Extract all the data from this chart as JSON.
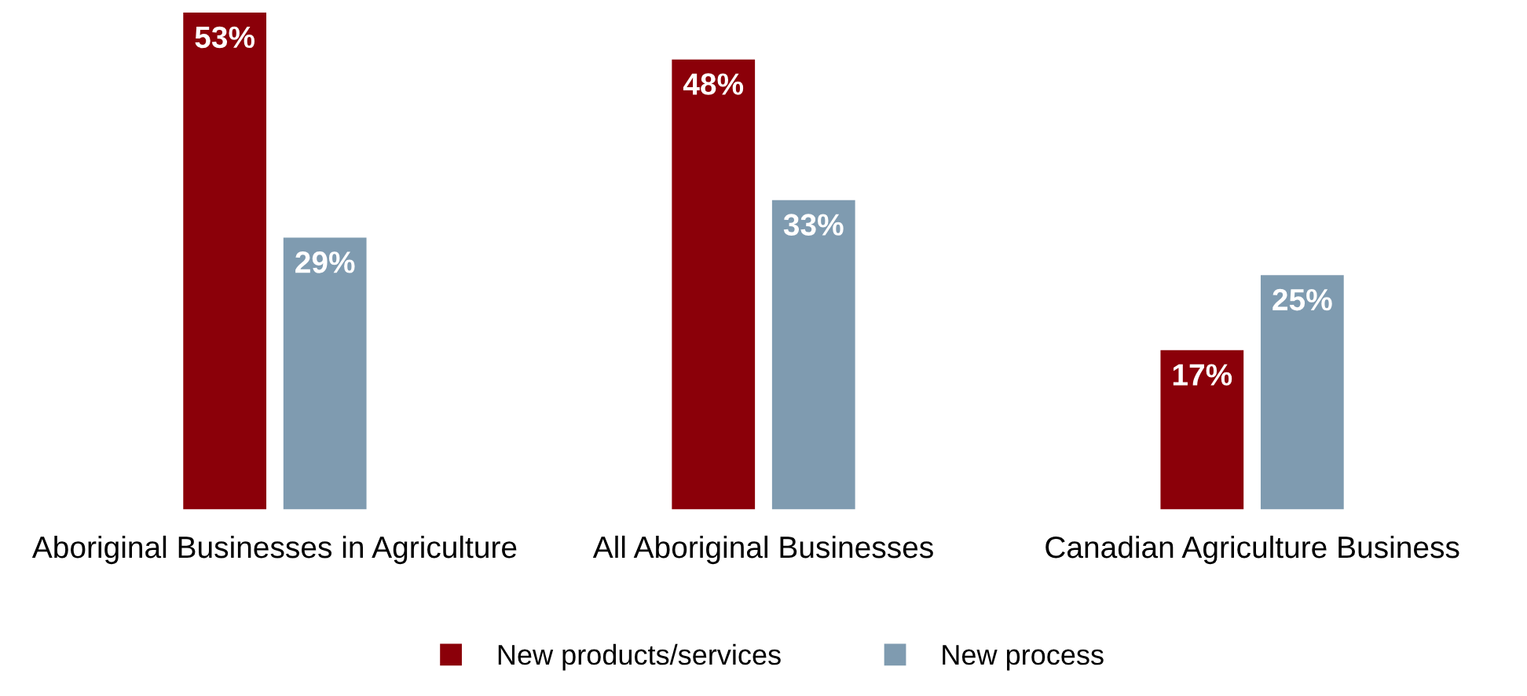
{
  "chart_data": {
    "type": "bar",
    "categories": [
      "Aboriginal Businesses in Agriculture",
      "All Aboriginal Businesses",
      "Canadian Agriculture Business"
    ],
    "series": [
      {
        "name": "New products/services",
        "color": "#8b0009",
        "values": [
          53,
          48,
          17
        ],
        "value_labels": [
          "53%",
          "48%",
          "17%"
        ]
      },
      {
        "name": "New process",
        "color": "#7f9bb0",
        "values": [
          29,
          33,
          25
        ],
        "value_labels": [
          "29%",
          "33%",
          "25%"
        ]
      }
    ],
    "legend": "bottom",
    "grid": false
  }
}
